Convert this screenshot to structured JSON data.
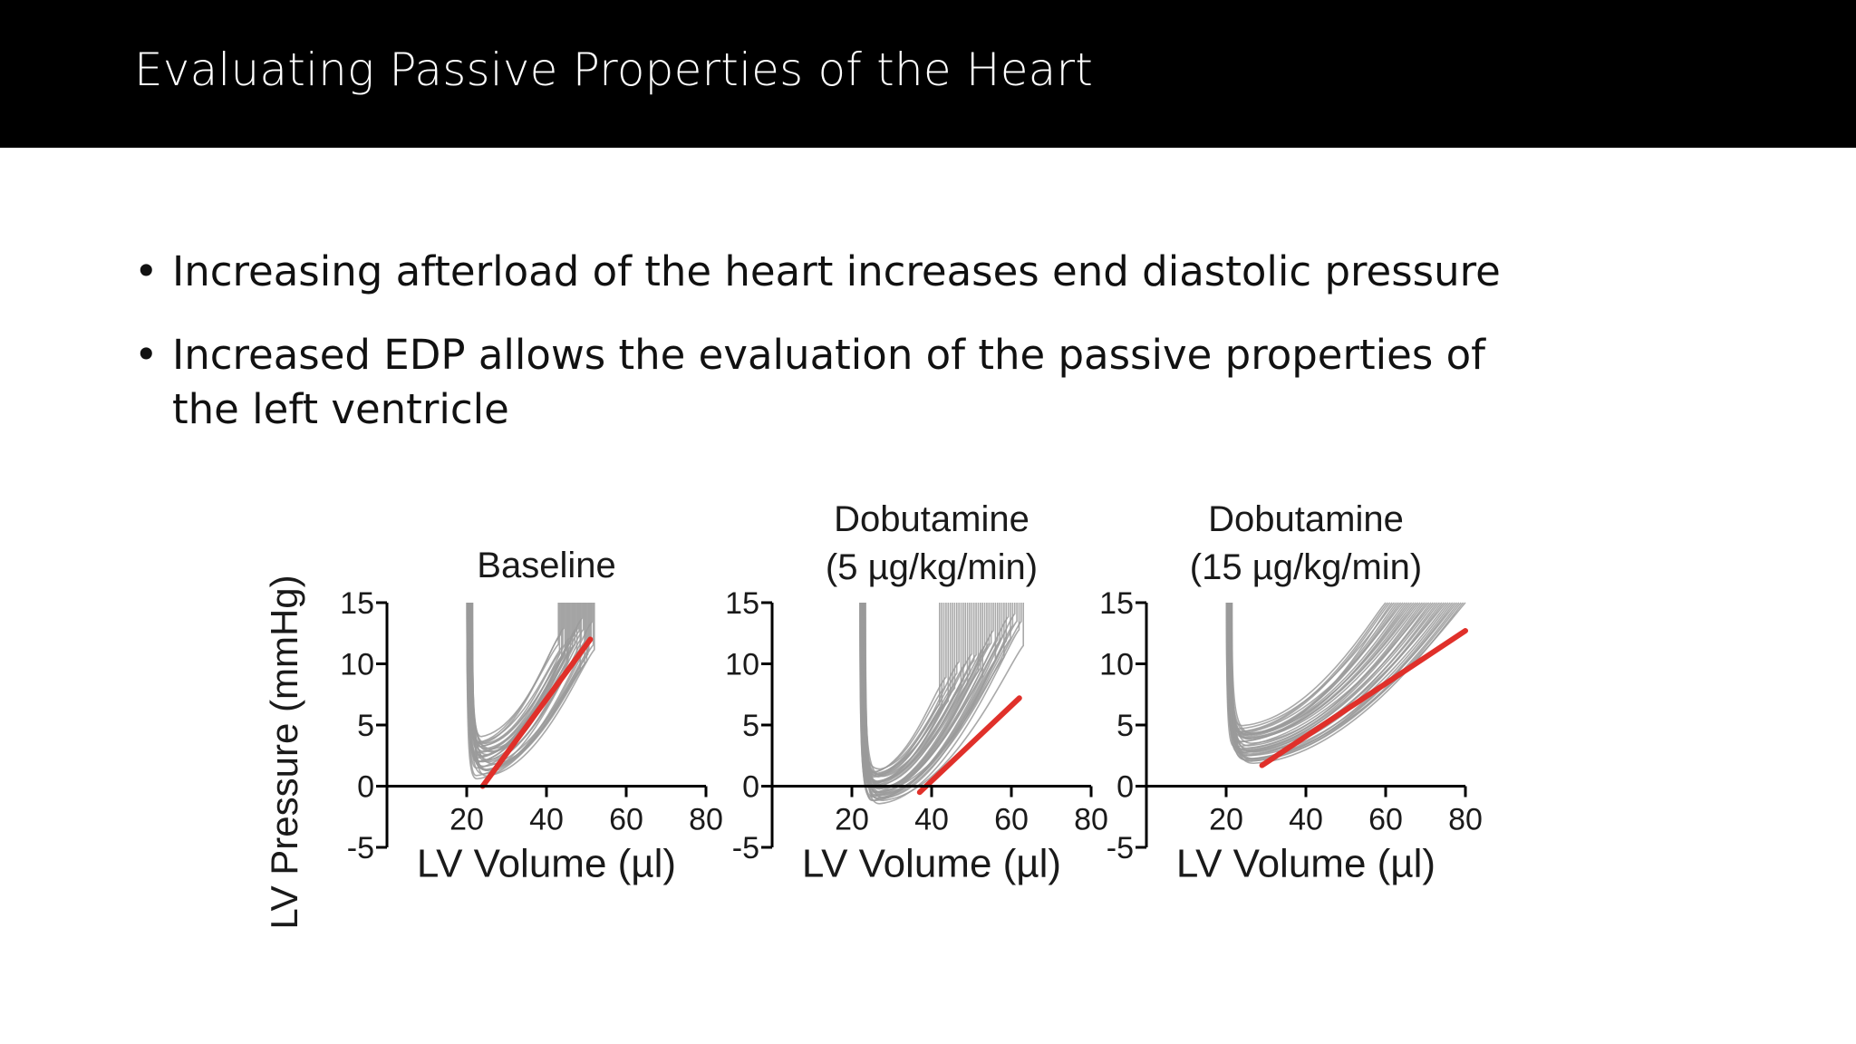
{
  "slide": {
    "title": "Evaluating Passive Properties of the Heart",
    "bullets": [
      "Increasing afterload of the heart increases end diastolic pressure",
      "Increased EDP allows the evaluation of the passive properties of the left ventricle"
    ],
    "bullet_marker": "•"
  },
  "colors": {
    "loops": "#9a9a9a",
    "fit": "#e0302a",
    "axis": "#000000",
    "header_bg": "#000000"
  },
  "chart_data": [
    {
      "type": "line",
      "title": "Baseline",
      "xlabel": "LV Volume (µl)",
      "ylabel": "LV Pressure (mmHg)",
      "xlim": [
        0,
        80
      ],
      "ylim": [
        -5,
        15
      ],
      "xticks": [
        20,
        40,
        60,
        80
      ],
      "yticks": [
        -5,
        0,
        5,
        10,
        15
      ],
      "loops": {
        "count": 34,
        "min_volume_range": [
          20,
          52
        ],
        "trough_pressure_range": [
          0.8,
          3.8
        ],
        "end_volume_range": [
          43,
          52
        ]
      },
      "series": [
        {
          "x": [
            24,
            51
          ],
          "y": [
            0,
            12
          ]
        }
      ]
    },
    {
      "type": "line",
      "title": "Dobutamine (5 µg/kg/min)",
      "xlabel": "LV Volume (µl)",
      "ylabel": "",
      "xlim": [
        0,
        80
      ],
      "ylim": [
        -5,
        15
      ],
      "xticks": [
        20,
        40,
        60,
        80
      ],
      "yticks": [
        -5,
        0,
        5,
        10,
        15
      ],
      "loops": {
        "count": 40,
        "min_volume_range": [
          22,
          63
        ],
        "trough_pressure_range": [
          -1.3,
          1.2
        ],
        "end_volume_range": [
          42,
          63
        ]
      },
      "series": [
        {
          "x": [
            37,
            62
          ],
          "y": [
            -0.5,
            7.2
          ]
        }
      ]
    },
    {
      "type": "line",
      "title": "Dobutamine (15 µg/kg/min)",
      "xlabel": "LV Volume (µl)",
      "ylabel": "",
      "xlim": [
        0,
        80
      ],
      "ylim": [
        -5,
        15
      ],
      "xticks": [
        20,
        40,
        60,
        80
      ],
      "yticks": [
        -5,
        0,
        5,
        10,
        15
      ],
      "loops": {
        "count": 38,
        "min_volume_range": [
          20,
          80
        ],
        "trough_pressure_range": [
          2.0,
          4.8
        ],
        "end_volume_range": [
          60,
          80
        ]
      },
      "series": [
        {
          "x": [
            29,
            80
          ],
          "y": [
            1.7,
            12.7
          ]
        }
      ]
    }
  ]
}
